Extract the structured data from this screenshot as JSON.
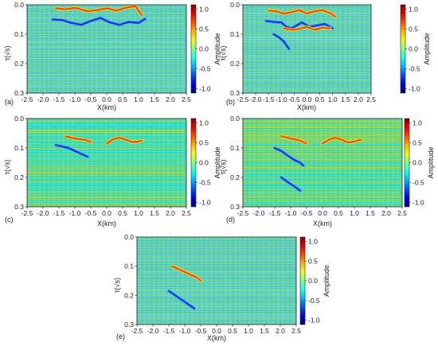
{
  "chart_data": [
    {
      "id": "a",
      "panel_label": "(a)",
      "type": "heatmap",
      "colormap": "jet",
      "xlabel": "X(km)",
      "ylabel": "τ(√s)",
      "colorbar_label": "Amplitude",
      "xlim": [
        -2.5,
        2.5
      ],
      "ylim": [
        0.0,
        0.3
      ],
      "xticks": [
        "-2.5",
        "-2.0",
        "-1.5",
        "-1.0",
        "-0.5",
        "0.0",
        "0.5",
        "1.0",
        "1.5",
        "2.0",
        "2.5"
      ],
      "yticks": [
        "0.0",
        "0.1",
        "0.2",
        "0.3"
      ],
      "cbar_ticks": [
        "1.0",
        "0.5",
        "0.0",
        "-0.5",
        "-1.0"
      ],
      "clim": [
        -1.0,
        1.0
      ],
      "events": [
        {
          "polarity": 1,
          "x": [
            -1.6,
            -1.3,
            -1.0,
            -0.6,
            -0.3,
            0.0,
            0.3,
            0.6,
            0.9,
            1.1
          ],
          "y": [
            0.012,
            0.015,
            0.01,
            0.022,
            0.018,
            0.012,
            0.02,
            0.01,
            0.005,
            0.035
          ]
        },
        {
          "polarity": -1,
          "x": [
            -1.7,
            -1.4,
            -1.1,
            -0.8,
            -0.5,
            -0.2,
            0.1,
            0.4,
            0.7,
            1.0,
            1.2
          ],
          "y": [
            0.05,
            0.052,
            0.062,
            0.068,
            0.055,
            0.045,
            0.06,
            0.068,
            0.058,
            0.062,
            0.048
          ]
        }
      ]
    },
    {
      "id": "b",
      "panel_label": "(b)",
      "type": "heatmap",
      "colormap": "jet",
      "xlabel": "X(km)",
      "ylabel": "τ(√s)",
      "colorbar_label": "Amplitude",
      "xlim": [
        -2.5,
        2.5
      ],
      "ylim": [
        0.0,
        0.3
      ],
      "xticks": [
        "-2.5",
        "-2.0",
        "-1.5",
        "-1.0",
        "-0.5",
        "0.0",
        "0.5",
        "1.0",
        "1.5",
        "2.0",
        "2.5"
      ],
      "yticks": [
        "0.0",
        "0.1",
        "0.2",
        "0.3"
      ],
      "cbar_ticks": [
        "1.0",
        "0.5",
        "0.0",
        "-0.5",
        "-1.0"
      ],
      "clim": [
        -1.0,
        1.0
      ],
      "events": [
        {
          "polarity": 1,
          "x": [
            -1.5,
            -1.2,
            -0.9,
            -0.6,
            -0.3,
            0.0,
            0.3,
            0.6,
            0.9,
            1.1
          ],
          "y": [
            0.02,
            0.022,
            0.03,
            0.025,
            0.018,
            0.03,
            0.022,
            0.018,
            0.028,
            0.04
          ]
        },
        {
          "polarity": -1,
          "x": [
            -1.6,
            -1.3,
            -1.0,
            -0.8,
            -0.6,
            -0.4,
            -0.2,
            0.1,
            0.4,
            0.7,
            1.0
          ],
          "y": [
            0.055,
            0.058,
            0.06,
            0.075,
            0.08,
            0.07,
            0.06,
            0.075,
            0.07,
            0.065,
            0.08
          ]
        },
        {
          "polarity": 1,
          "x": [
            -0.9,
            -0.6,
            -0.3,
            0.0,
            0.3,
            0.6,
            0.9
          ],
          "y": [
            0.08,
            0.085,
            0.082,
            0.075,
            0.085,
            0.078,
            0.08
          ]
        },
        {
          "polarity": -1,
          "x": [
            -1.3,
            -1.1,
            -0.9,
            -0.7
          ],
          "y": [
            0.1,
            0.11,
            0.125,
            0.15
          ]
        }
      ]
    },
    {
      "id": "c",
      "panel_label": "(c)",
      "type": "heatmap",
      "colormap": "jet",
      "xlabel": "X(km)",
      "ylabel": "τ(√s)",
      "colorbar_label": "Amplitude",
      "xlim": [
        -2.5,
        2.5
      ],
      "ylim": [
        0.0,
        0.3
      ],
      "xticks": [
        "-2.5",
        "-2.0",
        "-1.5",
        "-1.0",
        "-0.5",
        "0.0",
        "0.5",
        "1.0",
        "1.5",
        "2.0",
        "2.5"
      ],
      "yticks": [
        "0.0",
        "0.1",
        "0.2",
        "0.3"
      ],
      "cbar_ticks": [
        "1.0",
        "0.5",
        "0.0",
        "-0.5",
        "-1.0"
      ],
      "clim": [
        -1.0,
        1.0
      ],
      "events": [
        {
          "polarity": 1,
          "x": [
            -1.3,
            -1.1,
            -0.9,
            -0.7,
            -0.5
          ],
          "y": [
            0.06,
            0.065,
            0.07,
            0.072,
            0.08
          ]
        },
        {
          "polarity": 1,
          "x": [
            0.0,
            0.2,
            0.4,
            0.6,
            0.8,
            1.0,
            1.1
          ],
          "y": [
            0.085,
            0.07,
            0.065,
            0.072,
            0.08,
            0.078,
            0.075
          ]
        },
        {
          "polarity": -1,
          "x": [
            -1.6,
            -1.4,
            -1.2,
            -1.0,
            -0.8,
            -0.6
          ],
          "y": [
            0.09,
            0.095,
            0.1,
            0.11,
            0.12,
            0.13
          ]
        }
      ]
    },
    {
      "id": "d",
      "panel_label": "(d)",
      "type": "heatmap",
      "colormap": "jet",
      "xlabel": "X(km)",
      "ylabel": "τ(√s)",
      "colorbar_label": "Amplitude",
      "xlim": [
        -2.5,
        2.5
      ],
      "ylim": [
        0.0,
        0.3
      ],
      "xticks": [
        "-2.5",
        "-2.0",
        "-1.5",
        "-1.0",
        "-0.5",
        "0.0",
        "0.5",
        "1.0",
        "1.5",
        "2.0",
        "2.5"
      ],
      "yticks": [
        "0.0",
        "0.1",
        "0.2",
        "0.3"
      ],
      "cbar_ticks": [
        "1.0",
        "0.5",
        "0.0",
        "-0.5",
        "-1.0"
      ],
      "clim": [
        -1.0,
        1.0
      ],
      "events": [
        {
          "polarity": 1,
          "x": [
            -1.3,
            -1.1,
            -0.9,
            -0.7,
            -0.5
          ],
          "y": [
            0.06,
            0.065,
            0.07,
            0.075,
            0.085
          ]
        },
        {
          "polarity": 1,
          "x": [
            0.0,
            0.2,
            0.4,
            0.6,
            0.8,
            1.0,
            1.2
          ],
          "y": [
            0.085,
            0.072,
            0.065,
            0.072,
            0.082,
            0.078,
            0.072
          ]
        },
        {
          "polarity": -1,
          "x": [
            -1.5,
            -1.3,
            -1.1,
            -0.9,
            -0.7,
            -0.6
          ],
          "y": [
            0.1,
            0.11,
            0.125,
            0.14,
            0.15,
            0.16
          ]
        },
        {
          "polarity": -1,
          "x": [
            -1.3,
            -1.1,
            -0.9,
            -0.7
          ],
          "y": [
            0.2,
            0.215,
            0.23,
            0.245
          ]
        }
      ]
    },
    {
      "id": "e",
      "panel_label": "(e)",
      "type": "heatmap",
      "colormap": "jet",
      "xlabel": "X(km)",
      "ylabel": "τ(√s)",
      "colorbar_label": "Amplitude",
      "xlim": [
        -2.5,
        2.5
      ],
      "ylim": [
        0.0,
        0.3
      ],
      "xticks": [
        "-2.5",
        "-2.0",
        "-1.5",
        "-1.0",
        "-0.5",
        "0.0",
        "0.5",
        "1.0",
        "1.5",
        "2.0",
        "2.5"
      ],
      "yticks": [
        "0.0",
        "0.1",
        "0.2",
        "0.3"
      ],
      "cbar_ticks": [
        "1.0",
        "0.5",
        "0.0",
        "-0.5",
        "-1.0"
      ],
      "clim": [
        -1.0,
        1.0
      ],
      "events": [
        {
          "polarity": 1,
          "x": [
            -1.4,
            -1.2,
            -1.0,
            -0.8,
            -0.6,
            -0.5
          ],
          "y": [
            0.1,
            0.11,
            0.12,
            0.13,
            0.14,
            0.15
          ]
        },
        {
          "polarity": -1,
          "x": [
            -1.5,
            -1.3,
            -1.1,
            -0.9,
            -0.7
          ],
          "y": [
            0.185,
            0.2,
            0.215,
            0.23,
            0.245
          ]
        }
      ]
    }
  ]
}
